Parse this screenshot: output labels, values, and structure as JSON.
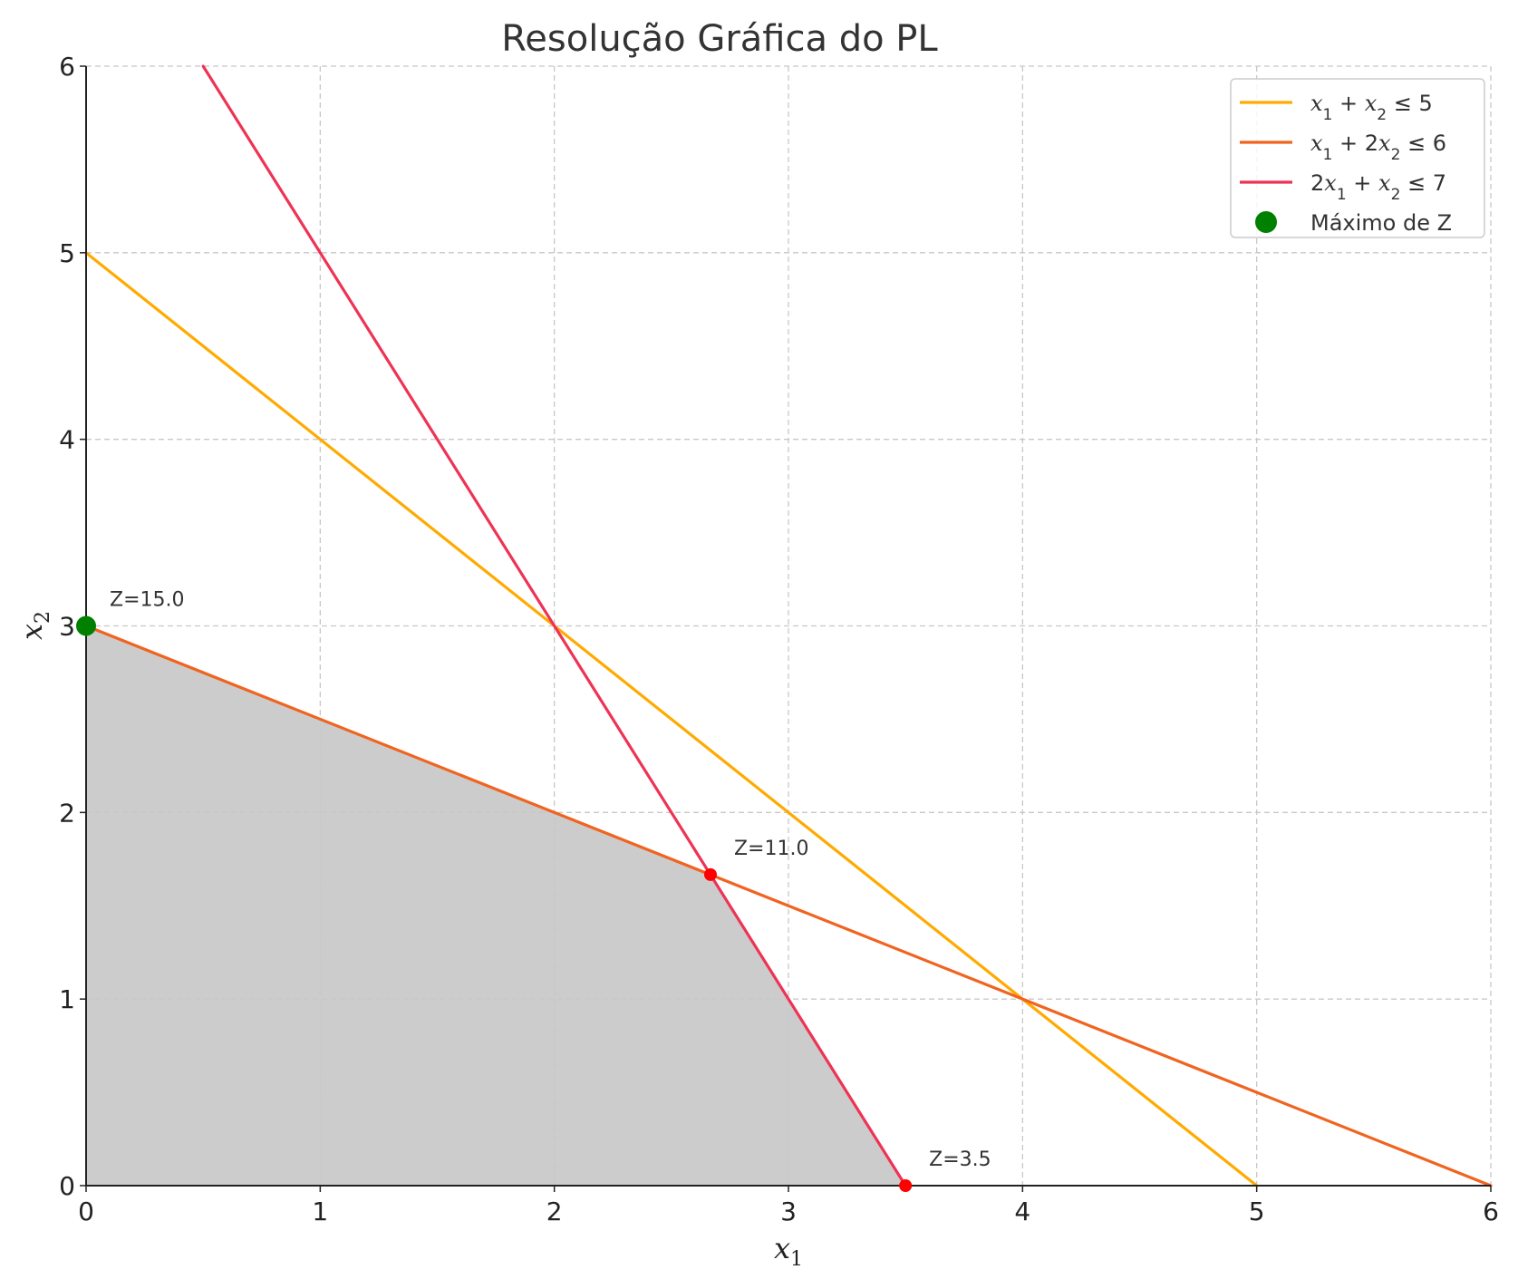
{
  "chart_data": {
    "type": "line",
    "title": "Resolução Gráfica do PL",
    "xlabel": {
      "main": "x",
      "sub": "1"
    },
    "ylabel": {
      "main": "x",
      "sub": "2"
    },
    "xlim": [
      0,
      6
    ],
    "ylim": [
      0,
      6
    ],
    "xticks": [
      0,
      1,
      2,
      3,
      4,
      5,
      6
    ],
    "yticks": [
      0,
      1,
      2,
      3,
      4,
      5,
      6
    ],
    "grid": true,
    "legend_position": "top-right",
    "feasible_region": {
      "color": "#cccccc",
      "vertices": [
        [
          0,
          0
        ],
        [
          0,
          3
        ],
        [
          2.667,
          1.667
        ],
        [
          3.5,
          0
        ]
      ]
    },
    "series": [
      {
        "name": "x1 + x2 ≤ 5",
        "legend": [
          {
            "t": "x",
            "m": true
          },
          {
            "t": "1",
            "sub": true
          },
          {
            "t": " + ",
            "m": false
          },
          {
            "t": "x",
            "m": true
          },
          {
            "t": "2",
            "sub": true
          },
          {
            "t": " ≤ 5",
            "m": false
          }
        ],
        "color": "#FFAA00",
        "points": [
          [
            0,
            5
          ],
          [
            5,
            0
          ]
        ]
      },
      {
        "name": "x1 + 2x2 ≤ 6",
        "legend": [
          {
            "t": "x",
            "m": true
          },
          {
            "t": "1",
            "sub": true
          },
          {
            "t": " + 2",
            "m": false
          },
          {
            "t": "x",
            "m": true
          },
          {
            "t": "2",
            "sub": true
          },
          {
            "t": " ≤ 6",
            "m": false
          }
        ],
        "color": "#F06420",
        "points": [
          [
            0,
            3
          ],
          [
            6,
            0
          ]
        ]
      },
      {
        "name": "2x1 + x2 ≤ 7",
        "legend": [
          {
            "t": "2",
            "m": false
          },
          {
            "t": "x",
            "m": true
          },
          {
            "t": "1",
            "sub": true
          },
          {
            "t": " + ",
            "m": false
          },
          {
            "t": "x",
            "m": true
          },
          {
            "t": "2",
            "sub": true
          },
          {
            "t": " ≤ 7",
            "m": false
          }
        ],
        "color": "#EE3355",
        "points": [
          [
            0.5,
            6
          ],
          [
            3.5,
            0
          ]
        ]
      }
    ],
    "vertices": [
      {
        "x": 0,
        "y": 3,
        "label": "Z=15.0",
        "color": "#008000",
        "max": true
      },
      {
        "x": 2.667,
        "y": 1.667,
        "label": "Z=11.0",
        "color": "#FF0000",
        "max": false
      },
      {
        "x": 3.5,
        "y": 0,
        "label": "Z=3.5",
        "color": "#FF0000",
        "max": false
      }
    ],
    "max_legend_label": "Máximo de Z",
    "max_color": "#008000"
  }
}
